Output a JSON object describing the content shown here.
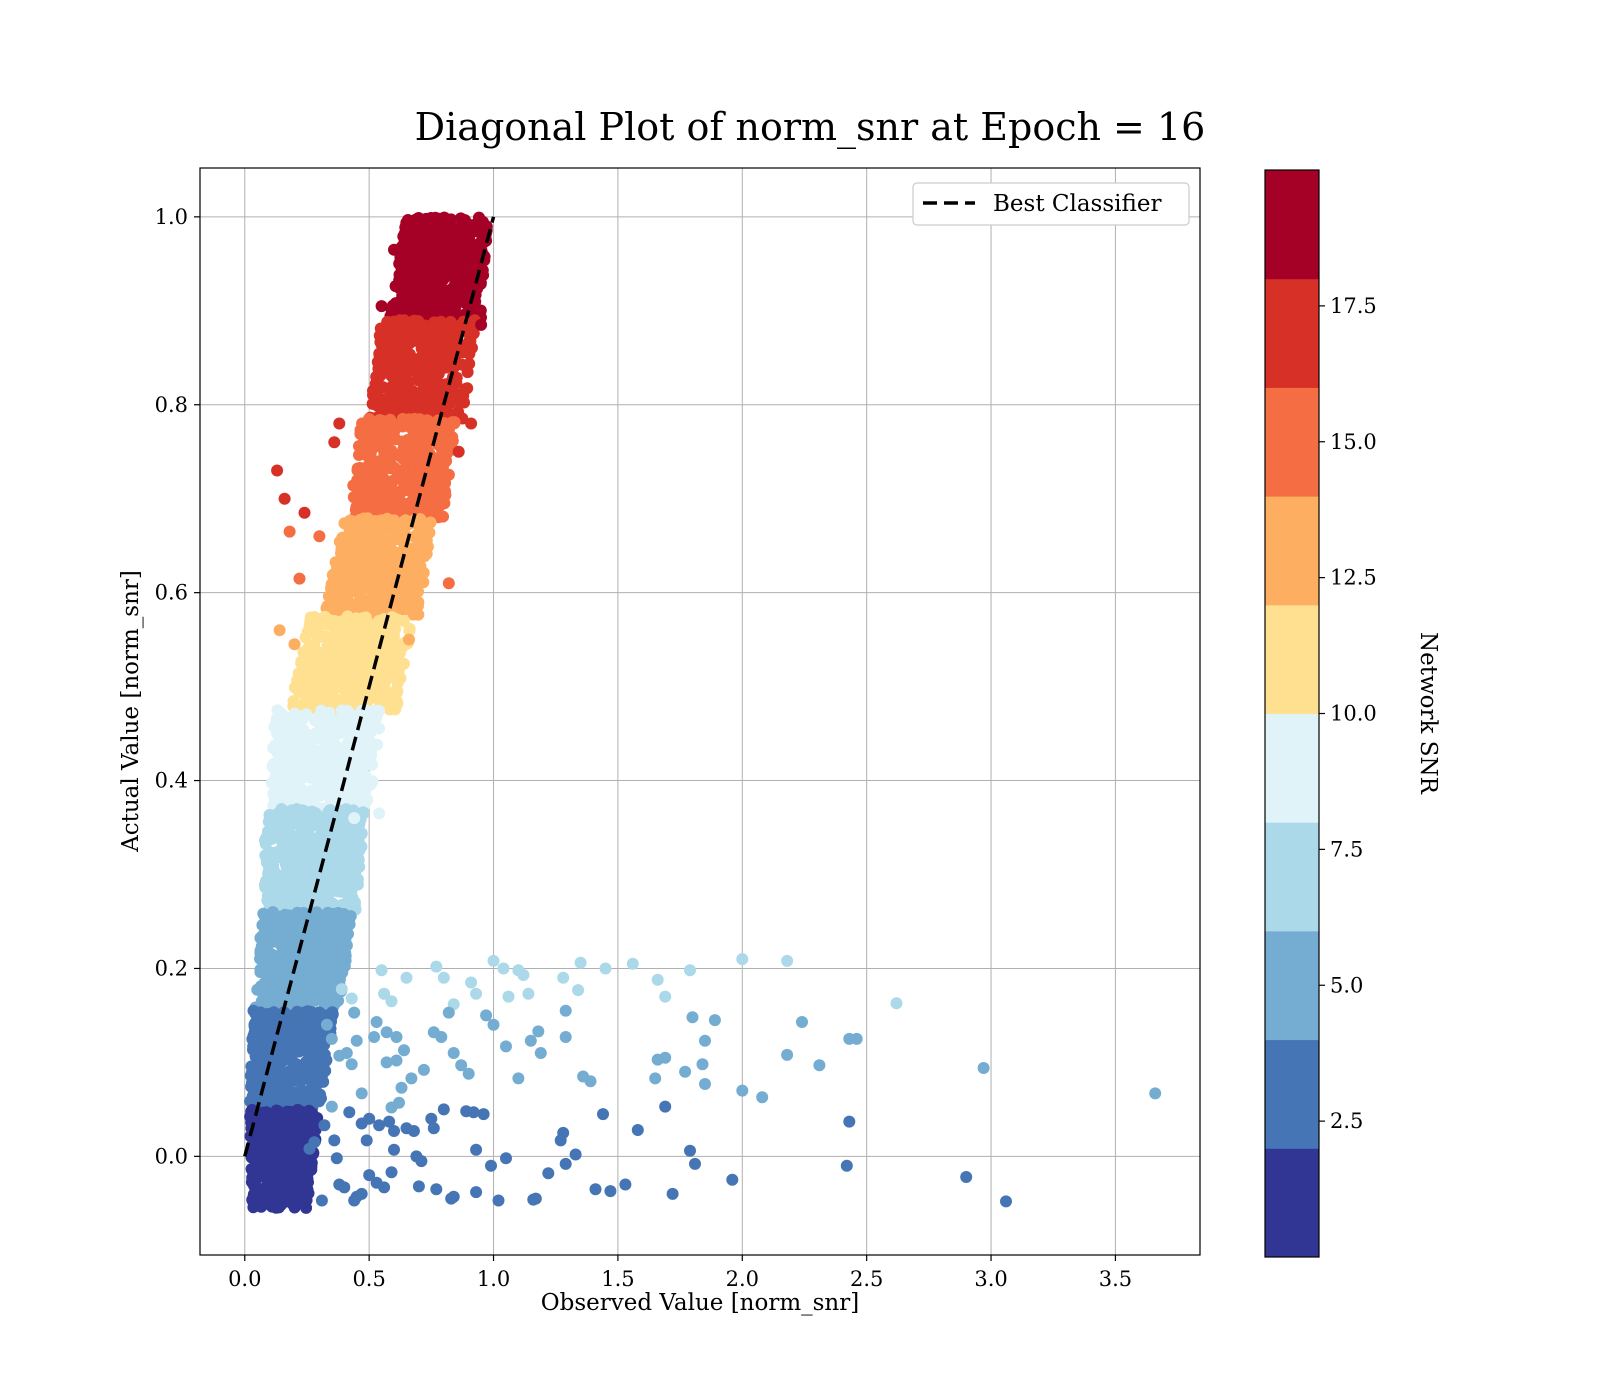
{
  "chart_data": {
    "type": "scatter",
    "title": "Diagonal Plot of norm_snr at Epoch = 16",
    "xlabel": "Observed Value [norm_snr]",
    "ylabel": "Actual Value [norm_snr]",
    "xlim": [
      -0.18,
      3.84
    ],
    "ylim": [
      -0.105,
      1.052
    ],
    "xticks": [
      "0.0",
      "0.5",
      "1.0",
      "1.5",
      "2.0",
      "2.5",
      "3.0",
      "3.5"
    ],
    "xtick_values": [
      0.0,
      0.5,
      1.0,
      1.5,
      2.0,
      2.5,
      3.0,
      3.5
    ],
    "yticks": [
      "0.0",
      "0.2",
      "0.4",
      "0.6",
      "0.8",
      "1.0"
    ],
    "ytick_values": [
      0.0,
      0.2,
      0.4,
      0.6,
      0.8,
      1.0
    ],
    "grid": true,
    "legend": {
      "placement": "top-right",
      "entries": [
        {
          "label": "Best Classifier",
          "style": "dashed-line",
          "color": "#000000"
        }
      ]
    },
    "reference_line": {
      "name": "Best Classifier",
      "x": [
        0.0,
        1.0
      ],
      "y": [
        0.0,
        1.0
      ]
    },
    "colorbar": {
      "label": "Network SNR",
      "range": [
        0,
        20
      ],
      "ticks": [
        "2.5",
        "5.0",
        "7.5",
        "10.0",
        "12.5",
        "15.0",
        "17.5"
      ],
      "tick_values": [
        2.5,
        5.0,
        7.5,
        10.0,
        12.5,
        15.0,
        17.5
      ],
      "bins": [
        {
          "range": [
            0,
            2
          ],
          "color": "#313695"
        },
        {
          "range": [
            2,
            4
          ],
          "color": "#4575b4"
        },
        {
          "range": [
            4,
            6
          ],
          "color": "#74add1"
        },
        {
          "range": [
            6,
            8
          ],
          "color": "#abd9e9"
        },
        {
          "range": [
            8,
            10
          ],
          "color": "#e0f3f8"
        },
        {
          "range": [
            10,
            12
          ],
          "color": "#fee090"
        },
        {
          "range": [
            12,
            14
          ],
          "color": "#fdae61"
        },
        {
          "range": [
            14,
            16
          ],
          "color": "#f46d43"
        },
        {
          "range": [
            16,
            18
          ],
          "color": "#d73027"
        },
        {
          "range": [
            18,
            20
          ],
          "color": "#a50026"
        }
      ]
    },
    "dense_bands": [
      {
        "y_range": [
          0.89,
          1.0
        ],
        "x_at_bottom": [
          0.58,
          0.95
        ],
        "x_at_top": [
          0.65,
          0.98
        ],
        "n": 500
      },
      {
        "y_range": [
          0.785,
          0.89
        ],
        "x_at_bottom": [
          0.5,
          0.88
        ],
        "x_at_top": [
          0.55,
          0.93
        ],
        "n": 420
      },
      {
        "y_range": [
          0.68,
          0.785
        ],
        "x_at_bottom": [
          0.42,
          0.8
        ],
        "x_at_top": [
          0.47,
          0.85
        ],
        "n": 420
      },
      {
        "y_range": [
          0.575,
          0.68
        ],
        "x_at_bottom": [
          0.32,
          0.7
        ],
        "x_at_top": [
          0.4,
          0.76
        ],
        "n": 420
      },
      {
        "y_range": [
          0.475,
          0.575
        ],
        "x_at_bottom": [
          0.18,
          0.62
        ],
        "x_at_top": [
          0.26,
          0.67
        ],
        "n": 420
      },
      {
        "y_range": [
          0.37,
          0.475
        ],
        "x_at_bottom": [
          0.1,
          0.5
        ],
        "x_at_top": [
          0.12,
          0.55
        ],
        "n": 420
      },
      {
        "y_range": [
          0.26,
          0.37
        ],
        "x_at_bottom": [
          0.08,
          0.45
        ],
        "x_at_top": [
          0.08,
          0.48
        ],
        "n": 420
      },
      {
        "y_range": [
          0.155,
          0.26
        ],
        "x_at_bottom": [
          0.04,
          0.38
        ],
        "x_at_top": [
          0.07,
          0.43
        ],
        "n": 420
      },
      {
        "y_range": [
          0.05,
          0.155
        ],
        "x_at_bottom": [
          0.02,
          0.3
        ],
        "x_at_top": [
          0.03,
          0.36
        ],
        "n": 420
      },
      {
        "y_range": [
          -0.055,
          0.05
        ],
        "x_at_bottom": [
          0.03,
          0.25
        ],
        "x_at_top": [
          0.02,
          0.3
        ],
        "n": 500
      }
    ],
    "points": [
      [
        0.13,
        0.73,
        8
      ],
      [
        0.16,
        0.7,
        8
      ],
      [
        0.24,
        0.685,
        8
      ],
      [
        0.36,
        0.76,
        8
      ],
      [
        0.38,
        0.78,
        8
      ],
      [
        0.91,
        0.78,
        8
      ],
      [
        0.86,
        0.75,
        8
      ],
      [
        0.6,
        0.965,
        9
      ],
      [
        0.55,
        0.905,
        9
      ],
      [
        0.95,
        0.885,
        9
      ],
      [
        0.18,
        0.665,
        7
      ],
      [
        0.22,
        0.615,
        7
      ],
      [
        0.3,
        0.66,
        7
      ],
      [
        0.82,
        0.61,
        7
      ],
      [
        0.14,
        0.56,
        6
      ],
      [
        0.2,
        0.545,
        6
      ],
      [
        0.66,
        0.55,
        6
      ],
      [
        0.54,
        0.365,
        4
      ],
      [
        0.44,
        0.36,
        4
      ],
      [
        0.55,
        0.198,
        3
      ],
      [
        0.65,
        0.19,
        3
      ],
      [
        0.77,
        0.202,
        3
      ],
      [
        0.8,
        0.19,
        3
      ],
      [
        0.91,
        0.185,
        3
      ],
      [
        1.0,
        0.208,
        3
      ],
      [
        1.04,
        0.2,
        3
      ],
      [
        1.1,
        0.198,
        3
      ],
      [
        1.12,
        0.193,
        3
      ],
      [
        1.28,
        0.19,
        3
      ],
      [
        1.35,
        0.206,
        3
      ],
      [
        1.45,
        0.2,
        3
      ],
      [
        1.56,
        0.205,
        3
      ],
      [
        1.66,
        0.188,
        3
      ],
      [
        1.79,
        0.198,
        3
      ],
      [
        2.0,
        0.21,
        3
      ],
      [
        2.18,
        0.208,
        3
      ],
      [
        2.62,
        0.163,
        3
      ],
      [
        1.69,
        0.17,
        3
      ],
      [
        1.34,
        0.177,
        3
      ],
      [
        1.14,
        0.173,
        3
      ],
      [
        1.06,
        0.17,
        3
      ],
      [
        0.93,
        0.173,
        3
      ],
      [
        0.84,
        0.162,
        3
      ],
      [
        0.59,
        0.165,
        3
      ],
      [
        0.56,
        0.173,
        3
      ],
      [
        0.43,
        0.168,
        3
      ],
      [
        0.39,
        0.178,
        3
      ],
      [
        0.44,
        0.153,
        2
      ],
      [
        0.53,
        0.143,
        2
      ],
      [
        0.57,
        0.132,
        2
      ],
      [
        0.61,
        0.127,
        2
      ],
      [
        0.52,
        0.127,
        2
      ],
      [
        0.45,
        0.123,
        2
      ],
      [
        0.35,
        0.125,
        2
      ],
      [
        0.33,
        0.14,
        2
      ],
      [
        0.41,
        0.11,
        2
      ],
      [
        0.38,
        0.107,
        2
      ],
      [
        0.43,
        0.098,
        2
      ],
      [
        0.57,
        0.1,
        2
      ],
      [
        0.61,
        0.102,
        2
      ],
      [
        0.64,
        0.113,
        2
      ],
      [
        0.72,
        0.092,
        2
      ],
      [
        0.67,
        0.083,
        2
      ],
      [
        0.63,
        0.073,
        2
      ],
      [
        0.76,
        0.132,
        2
      ],
      [
        0.79,
        0.127,
        2
      ],
      [
        0.82,
        0.153,
        2
      ],
      [
        0.84,
        0.11,
        2
      ],
      [
        0.87,
        0.097,
        2
      ],
      [
        0.9,
        0.088,
        2
      ],
      [
        0.97,
        0.15,
        2
      ],
      [
        1.0,
        0.14,
        2
      ],
      [
        1.05,
        0.117,
        2
      ],
      [
        1.1,
        0.083,
        2
      ],
      [
        1.15,
        0.123,
        2
      ],
      [
        1.18,
        0.133,
        2
      ],
      [
        1.19,
        0.11,
        2
      ],
      [
        1.29,
        0.127,
        2
      ],
      [
        1.29,
        0.155,
        2
      ],
      [
        1.36,
        0.085,
        2
      ],
      [
        1.39,
        0.08,
        2
      ],
      [
        1.66,
        0.103,
        2
      ],
      [
        1.69,
        0.105,
        2
      ],
      [
        1.65,
        0.083,
        2
      ],
      [
        1.77,
        0.09,
        2
      ],
      [
        1.8,
        0.148,
        2
      ],
      [
        1.84,
        0.098,
        2
      ],
      [
        1.85,
        0.123,
        2
      ],
      [
        1.85,
        0.077,
        2
      ],
      [
        1.89,
        0.145,
        2
      ],
      [
        2.0,
        0.07,
        2
      ],
      [
        2.08,
        0.063,
        2
      ],
      [
        2.18,
        0.108,
        2
      ],
      [
        2.24,
        0.143,
        2
      ],
      [
        2.31,
        0.097,
        2
      ],
      [
        2.43,
        0.125,
        2
      ],
      [
        2.46,
        0.125,
        2
      ],
      [
        2.97,
        0.094,
        2
      ],
      [
        3.66,
        0.067,
        2
      ],
      [
        0.35,
        0.053,
        2
      ],
      [
        0.47,
        0.067,
        2
      ],
      [
        0.59,
        0.052,
        2
      ],
      [
        0.62,
        0.057,
        2
      ],
      [
        0.32,
        0.033,
        1
      ],
      [
        0.42,
        0.047,
        1
      ],
      [
        0.47,
        0.035,
        1
      ],
      [
        0.5,
        0.04,
        1
      ],
      [
        0.54,
        0.033,
        1
      ],
      [
        0.58,
        0.037,
        1
      ],
      [
        0.6,
        0.027,
        1
      ],
      [
        0.65,
        0.03,
        1
      ],
      [
        0.68,
        0.027,
        1
      ],
      [
        0.75,
        0.04,
        1
      ],
      [
        0.76,
        0.03,
        1
      ],
      [
        0.8,
        0.05,
        1
      ],
      [
        0.89,
        0.048,
        1
      ],
      [
        0.92,
        0.047,
        1
      ],
      [
        0.96,
        0.045,
        1
      ],
      [
        0.99,
        -0.01,
        1
      ],
      [
        1.05,
        -0.002,
        1
      ],
      [
        1.02,
        -0.047,
        1
      ],
      [
        0.93,
        0.007,
        1
      ],
      [
        0.93,
        -0.038,
        1
      ],
      [
        0.84,
        -0.043,
        1
      ],
      [
        0.83,
        -0.045,
        1
      ],
      [
        0.77,
        -0.035,
        1
      ],
      [
        0.7,
        -0.032,
        1
      ],
      [
        0.69,
        0.0,
        1
      ],
      [
        0.71,
        -0.005,
        1
      ],
      [
        0.6,
        0.007,
        1
      ],
      [
        0.59,
        -0.017,
        1
      ],
      [
        0.56,
        -0.033,
        1
      ],
      [
        0.53,
        -0.028,
        1
      ],
      [
        0.5,
        -0.02,
        1
      ],
      [
        0.49,
        0.017,
        1
      ],
      [
        0.44,
        -0.047,
        1
      ],
      [
        0.45,
        -0.043,
        1
      ],
      [
        0.47,
        -0.04,
        1
      ],
      [
        0.4,
        -0.033,
        1
      ],
      [
        0.38,
        -0.03,
        1
      ],
      [
        0.36,
        0.017,
        1
      ],
      [
        0.37,
        -0.002,
        1
      ],
      [
        0.31,
        -0.047,
        1
      ],
      [
        0.28,
        0.015,
        1
      ],
      [
        0.26,
        0.008,
        1
      ],
      [
        1.17,
        -0.045,
        1
      ],
      [
        1.16,
        -0.046,
        1
      ],
      [
        1.22,
        -0.018,
        1
      ],
      [
        1.27,
        0.017,
        1
      ],
      [
        1.28,
        0.025,
        1
      ],
      [
        1.29,
        -0.008,
        1
      ],
      [
        1.33,
        0.002,
        1
      ],
      [
        1.41,
        -0.035,
        1
      ],
      [
        1.44,
        0.045,
        1
      ],
      [
        1.47,
        -0.037,
        1
      ],
      [
        1.53,
        -0.03,
        1
      ],
      [
        1.58,
        0.028,
        1
      ],
      [
        1.69,
        0.053,
        1
      ],
      [
        1.72,
        -0.04,
        1
      ],
      [
        1.79,
        0.006,
        1
      ],
      [
        1.81,
        -0.008,
        1
      ],
      [
        1.96,
        -0.025,
        1
      ],
      [
        2.42,
        -0.01,
        1
      ],
      [
        2.43,
        0.037,
        1
      ],
      [
        2.9,
        -0.022,
        1
      ],
      [
        3.06,
        -0.048,
        1
      ]
    ]
  }
}
